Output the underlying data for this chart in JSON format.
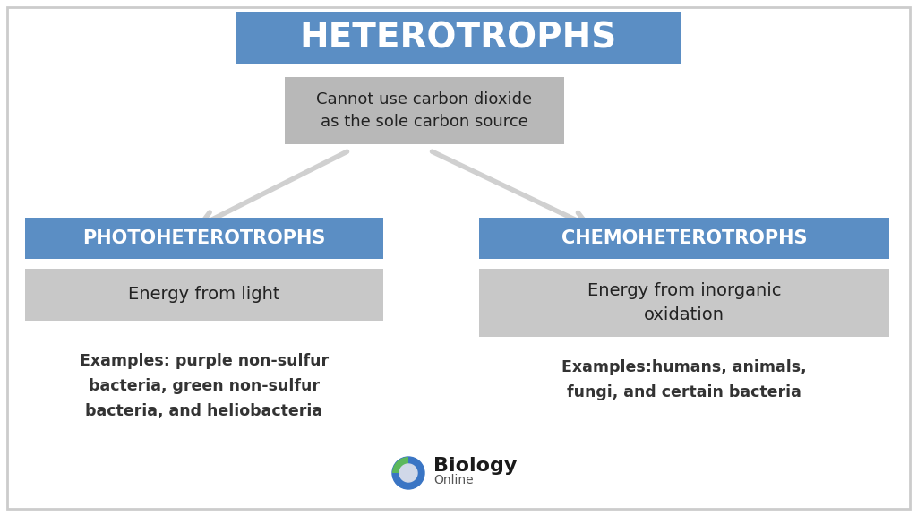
{
  "title": "HETEROTROPHS",
  "title_bg": "#5b8ec4",
  "title_text_color": "#ffffff",
  "subtitle": "Cannot use carbon dioxide\nas the sole carbon source",
  "subtitle_bg": "#b8b8b8",
  "left_header": "PHOTOHETEROTROPHS",
  "right_header": "CHEMOHETEROTROPHS",
  "header_bg": "#5b8ec4",
  "header_text_color": "#ffffff",
  "left_desc": "Energy from light",
  "right_desc": "Energy from inorganic\noxidation",
  "desc_bg": "#c8c8c8",
  "left_examples": "Examples: purple non-sulfur\nbacteria, green non-sulfur\nbacteria, and heliobacteria",
  "right_examples": "Examples:humans, animals,\nfungi, and certain bacteria",
  "bg_color": "#ffffff",
  "border_color": "#cccccc",
  "arrow_color": "#d0d0d0",
  "text_color": "#222222",
  "examples_color": "#333333"
}
